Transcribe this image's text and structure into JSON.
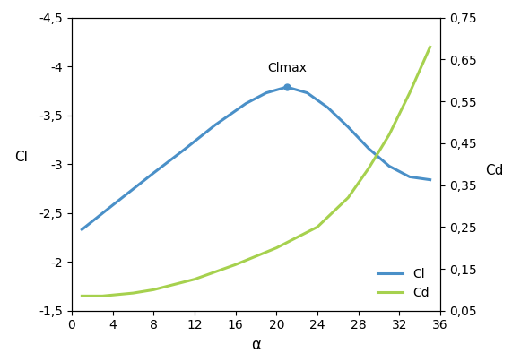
{
  "chart_data": {
    "type": "line",
    "x_label": "α",
    "y_label": "Cl",
    "y2_label": "Cd",
    "xlim": [
      0,
      36
    ],
    "xticks": [
      0,
      4,
      8,
      12,
      16,
      20,
      24,
      28,
      32,
      36
    ],
    "ylim": [
      -1.5,
      -4.5
    ],
    "yticks": [
      {
        "value": -1.5,
        "label": "-1,5"
      },
      -2,
      {
        "value": -2.5,
        "label": "-2,5"
      },
      -3,
      {
        "value": -3.5,
        "label": "-3,5"
      },
      -4,
      {
        "value": -4.5,
        "label": "-4,5"
      }
    ],
    "y2lim": [
      0.05,
      0.75
    ],
    "y2ticks": [
      {
        "value": 0.05,
        "label": "0,05"
      },
      {
        "value": 0.15,
        "label": "0,15"
      },
      {
        "value": 0.25,
        "label": "0,25"
      },
      {
        "value": 0.35,
        "label": "0,35"
      },
      {
        "value": 0.45,
        "label": "0,45"
      },
      {
        "value": 0.55,
        "label": "0,55"
      },
      {
        "value": 0.65,
        "label": "0,65"
      },
      {
        "value": 0.75,
        "label": "0,75"
      }
    ],
    "grid": false,
    "legend": "lower right",
    "series": [
      {
        "name": "Cl",
        "color": "#4a90c8",
        "x": [
          1,
          4,
          8,
          11,
          14,
          17,
          19,
          21,
          23,
          25,
          27,
          29,
          31,
          33,
          35
        ],
        "values": [
          -2.33,
          -2.58,
          -2.91,
          -3.15,
          -3.4,
          -3.62,
          -3.73,
          -3.79,
          -3.73,
          -3.58,
          -3.38,
          -3.16,
          -2.98,
          -2.87,
          -2.84
        ]
      },
      {
        "name": "Cd",
        "color": "#a6d14e",
        "axis": "y2",
        "x": [
          1,
          3,
          6,
          8,
          12,
          16,
          20,
          24,
          27,
          29,
          31,
          33,
          35
        ],
        "values": [
          0.085,
          0.085,
          0.092,
          0.1,
          0.125,
          0.16,
          0.2,
          0.25,
          0.32,
          0.39,
          0.47,
          0.57,
          0.68
        ]
      }
    ],
    "annotations": [
      {
        "text": "Clmax",
        "x": 21,
        "y": -3.79
      }
    ]
  }
}
